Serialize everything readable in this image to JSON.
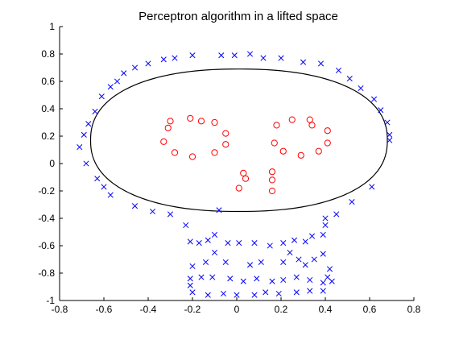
{
  "chart_data": {
    "type": "scatter",
    "title": "Perceptron algorithm in a lifted space",
    "xlabel": "",
    "ylabel": "",
    "xlim": [
      -0.8,
      0.8
    ],
    "ylim": [
      -1,
      1
    ],
    "x_ticks": [
      -0.8,
      -0.6,
      -0.4,
      -0.2,
      0,
      0.2,
      0.4,
      0.6,
      0.8
    ],
    "y_ticks": [
      -1,
      -0.8,
      -0.6,
      -0.4,
      -0.2,
      0,
      0.2,
      0.4,
      0.6,
      0.8,
      1
    ],
    "x_tick_labels": [
      "-0.8",
      "-0.6",
      "-0.4",
      "-0.2",
      "0",
      "0.2",
      "0.4",
      "0.6",
      "0.8"
    ],
    "y_tick_labels": [
      "-1",
      "-0.8",
      "-0.6",
      "-0.4",
      "-0.2",
      "0",
      "0.2",
      "0.4",
      "0.6",
      "0.8",
      "1"
    ],
    "grid": false,
    "legend": "none",
    "series": [
      {
        "marker": "x",
        "color": "#0000ff",
        "points": [
          [
            -0.2,
            0.79
          ],
          [
            -0.07,
            0.79
          ],
          [
            -0.01,
            0.79
          ],
          [
            0.06,
            0.8
          ],
          [
            0.12,
            0.77
          ],
          [
            0.2,
            0.77
          ],
          [
            0.3,
            0.74
          ],
          [
            0.38,
            0.73
          ],
          [
            0.46,
            0.68
          ],
          [
            0.51,
            0.62
          ],
          [
            0.56,
            0.55
          ],
          [
            0.62,
            0.47
          ],
          [
            0.65,
            0.39
          ],
          [
            0.68,
            0.3
          ],
          [
            0.69,
            0.21
          ],
          [
            -0.28,
            0.77
          ],
          [
            -0.33,
            0.76
          ],
          [
            -0.4,
            0.73
          ],
          [
            -0.46,
            0.7
          ],
          [
            -0.51,
            0.66
          ],
          [
            -0.54,
            0.6
          ],
          [
            -0.57,
            0.56
          ],
          [
            -0.61,
            0.49
          ],
          [
            -0.64,
            0.38
          ],
          [
            -0.67,
            0.29
          ],
          [
            -0.69,
            0.21
          ],
          [
            -0.71,
            0.12
          ],
          [
            -0.68,
            0.0
          ],
          [
            -0.63,
            -0.11
          ],
          [
            -0.6,
            -0.17
          ],
          [
            -0.57,
            -0.23
          ],
          [
            -0.46,
            -0.31
          ],
          [
            -0.38,
            -0.35
          ],
          [
            -0.3,
            -0.37
          ],
          [
            -0.23,
            -0.45
          ],
          [
            -0.21,
            -0.57
          ],
          [
            -0.17,
            -0.58
          ],
          [
            -0.13,
            -0.56
          ],
          [
            -0.1,
            -0.52
          ],
          [
            -0.04,
            -0.58
          ],
          [
            0.01,
            -0.58
          ],
          [
            0.08,
            -0.58
          ],
          [
            0.15,
            -0.6
          ],
          [
            0.21,
            -0.58
          ],
          [
            0.26,
            -0.56
          ],
          [
            0.31,
            -0.57
          ],
          [
            0.34,
            -0.53
          ],
          [
            0.39,
            -0.52
          ],
          [
            0.4,
            -0.45
          ],
          [
            0.4,
            -0.4
          ],
          [
            0.45,
            -0.37
          ],
          [
            0.52,
            -0.28
          ],
          [
            0.61,
            -0.17
          ],
          [
            0.69,
            0.17
          ],
          [
            -0.08,
            -0.34
          ],
          [
            -0.2,
            -0.75
          ],
          [
            -0.14,
            -0.72
          ],
          [
            -0.05,
            -0.72
          ],
          [
            0.06,
            -0.74
          ],
          [
            0.11,
            -0.72
          ],
          [
            0.21,
            -0.72
          ],
          [
            0.28,
            -0.7
          ],
          [
            0.31,
            -0.74
          ],
          [
            0.35,
            -0.7
          ],
          [
            0.39,
            -0.66
          ],
          [
            -0.21,
            -0.84
          ],
          [
            -0.21,
            -0.89
          ],
          [
            -0.2,
            -0.94
          ],
          [
            -0.16,
            -0.83
          ],
          [
            -0.11,
            -0.83
          ],
          [
            -0.03,
            -0.84
          ],
          [
            0.03,
            -0.86
          ],
          [
            0.09,
            -0.84
          ],
          [
            0.16,
            -0.86
          ],
          [
            0.21,
            -0.85
          ],
          [
            0.27,
            -0.83
          ],
          [
            0.33,
            -0.85
          ],
          [
            0.39,
            -0.87
          ],
          [
            0.41,
            -0.83
          ],
          [
            -0.13,
            -0.96
          ],
          [
            -0.06,
            -0.95
          ],
          [
            0.0,
            -0.96
          ],
          [
            0.08,
            -0.96
          ],
          [
            0.13,
            -0.94
          ],
          [
            0.19,
            -0.95
          ],
          [
            0.27,
            -0.94
          ],
          [
            0.33,
            -0.93
          ],
          [
            0.39,
            -0.93
          ],
          [
            0.43,
            -0.86
          ],
          [
            0.24,
            -0.65
          ],
          [
            0.42,
            -0.77
          ],
          [
            -0.1,
            -0.65
          ]
        ]
      },
      {
        "marker": "o",
        "color": "#ff0000",
        "points": [
          [
            -0.3,
            0.31
          ],
          [
            -0.31,
            0.26
          ],
          [
            -0.33,
            0.16
          ],
          [
            -0.28,
            0.08
          ],
          [
            -0.21,
            0.33
          ],
          [
            -0.16,
            0.31
          ],
          [
            -0.1,
            0.3
          ],
          [
            -0.05,
            0.22
          ],
          [
            -0.05,
            0.14
          ],
          [
            -0.1,
            0.08
          ],
          [
            -0.2,
            0.05
          ],
          [
            0.18,
            0.28
          ],
          [
            0.25,
            0.32
          ],
          [
            0.33,
            0.32
          ],
          [
            0.34,
            0.28
          ],
          [
            0.41,
            0.24
          ],
          [
            0.41,
            0.15
          ],
          [
            0.37,
            0.09
          ],
          [
            0.29,
            0.06
          ],
          [
            0.21,
            0.09
          ],
          [
            0.17,
            0.15
          ],
          [
            0.03,
            -0.07
          ],
          [
            0.04,
            -0.11
          ],
          [
            0.01,
            -0.18
          ],
          [
            0.16,
            -0.06
          ],
          [
            0.16,
            -0.12
          ],
          [
            0.16,
            -0.2
          ]
        ]
      }
    ],
    "decision_boundary": {
      "type": "closed_curve",
      "color": "#000000",
      "approx_center": [
        0.1,
        0.17
      ],
      "approx_x_extent": [
        -0.66,
        0.68
      ],
      "approx_y_extent": [
        -0.35,
        0.69
      ]
    }
  }
}
